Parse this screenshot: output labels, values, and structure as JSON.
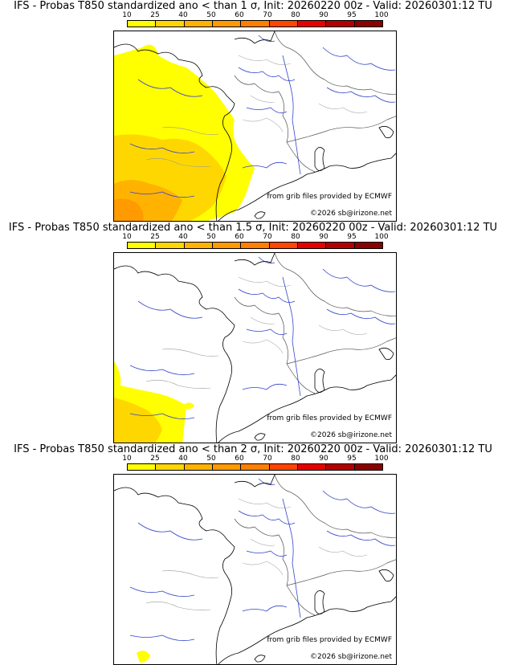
{
  "legend": {
    "ticks": [
      "10",
      "25",
      "40",
      "50",
      "60",
      "70",
      "80",
      "90",
      "95",
      "100"
    ],
    "colors": [
      "#ffff00",
      "#ffd700",
      "#ffb300",
      "#ff9a00",
      "#ff8000",
      "#ff4500",
      "#e60000",
      "#b30000",
      "#8b0000",
      "#4d0000"
    ]
  },
  "panels": [
    {
      "title": "IFS - Probas T850  standardized ano < than 1 σ, Init: 20260220 00z - Valid: 20260301:12 TU",
      "credit_source": "from grib files provided by ECMWF",
      "credit_copyright": "©2026 sb@irizone.net"
    },
    {
      "title": "IFS - Probas T850  standardized ano < than 1.5 σ, Init: 20260220 00z - Valid: 20260301:12 TU",
      "credit_source": "from grib files provided by ECMWF",
      "credit_copyright": "©2026 sb@irizone.net"
    },
    {
      "title": "IFS - Probas T850  standardized ano < than 2 σ, Init: 20260220 00z - Valid: 20260301:12 TU",
      "credit_source": "from grib files provided by ECMWF",
      "credit_copyright": "©2026 sb@irizone.net"
    }
  ]
}
